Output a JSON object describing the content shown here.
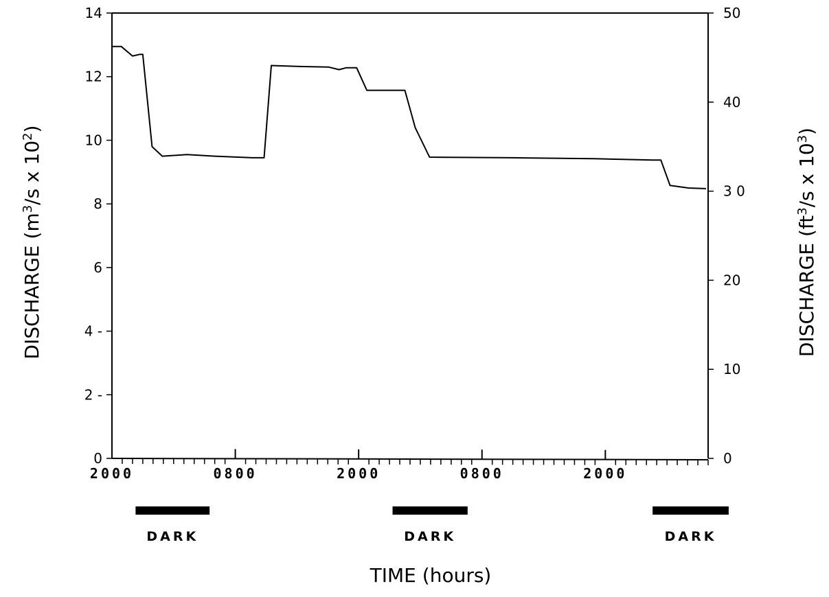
{
  "chart_data": {
    "type": "line",
    "title": "",
    "xlabel": "TIME (hours)",
    "ylabel_left": {
      "prefix": "DISCHARGE (m",
      "sup1": "3",
      "mid": "/s x 10",
      "sup2": "2",
      "suffix": ")"
    },
    "ylabel_right": {
      "prefix": "DISCHARGE (ft",
      "sup1": "3",
      "mid": "/s x 10",
      "sup2": "3",
      "suffix": ")"
    },
    "ylim": [
      0,
      14
    ],
    "ylim_right": [
      0,
      50
    ],
    "xlim_hours": [
      0,
      58
    ],
    "grid": false,
    "left_ticks": [
      {
        "value": 0,
        "label": "0"
      },
      {
        "value": 2,
        "label": "2 -"
      },
      {
        "value": 4,
        "label": "4 -"
      },
      {
        "value": 6,
        "label": "6"
      },
      {
        "value": 8,
        "label": "8"
      },
      {
        "value": 10,
        "label": "10"
      },
      {
        "value": 12,
        "label": "12"
      },
      {
        "value": 14,
        "label": "14"
      }
    ],
    "right_ticks": [
      {
        "value": 0,
        "label": "0"
      },
      {
        "value": 10,
        "label": "10"
      },
      {
        "value": 20,
        "label": "20"
      },
      {
        "value": 30,
        "label": "3 0"
      },
      {
        "value": 40,
        "label": "40"
      },
      {
        "value": 50,
        "label": "50"
      }
    ],
    "x_tick_labels": [
      {
        "hour": 0,
        "label": "2000"
      },
      {
        "hour": 12,
        "label": "0800"
      },
      {
        "hour": 24,
        "label": "2000"
      },
      {
        "hour": 36,
        "label": "0800"
      },
      {
        "hour": 48,
        "label": "2000"
      }
    ],
    "dark_periods": [
      {
        "start": 2.3,
        "end": 9.5,
        "label": "DARK"
      },
      {
        "start": 27.3,
        "end": 34.6,
        "label": "DARK"
      },
      {
        "start": 52.6,
        "end": 60,
        "label": "DARK"
      }
    ],
    "series": [
      {
        "x": [
          0,
          0.9,
          2.0,
          2.7,
          3.0,
          3.9,
          4.9,
          7.3,
          10.0,
          13.7,
          14.8,
          15.5,
          18.3,
          21.1,
          22.1,
          22.8,
          23.8,
          24.8,
          25.8,
          28.5,
          29.5,
          30.9,
          39.0,
          46.9,
          49.7,
          52.6,
          53.4,
          54.3,
          56.1,
          57.8
        ],
        "y": [
          12.95,
          12.95,
          12.65,
          12.7,
          12.7,
          9.8,
          9.5,
          9.55,
          9.5,
          9.45,
          9.45,
          12.35,
          12.32,
          12.3,
          12.22,
          12.28,
          12.28,
          11.57,
          11.57,
          11.57,
          10.4,
          9.47,
          9.45,
          9.42,
          9.4,
          9.38,
          9.38,
          8.58,
          8.5,
          8.48
        ]
      }
    ]
  }
}
